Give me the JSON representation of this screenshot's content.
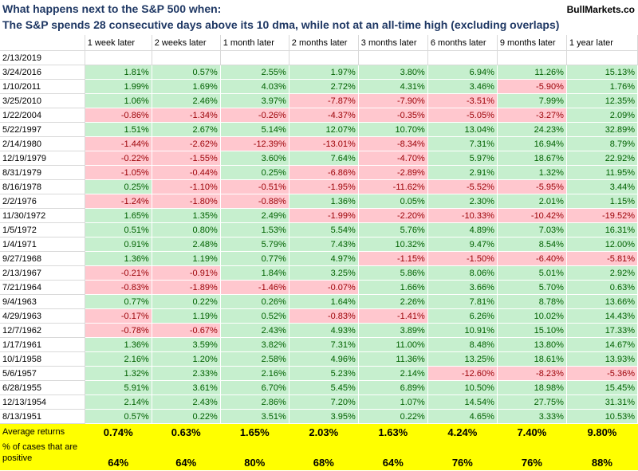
{
  "header": {
    "title_line1": "What happens next to the S&P 500 when:",
    "title_line2": "The S&P spends 28 consecutive days above its 10 dma, while not at an all-time high (excluding overlaps)",
    "brand": "BullMarkets.co"
  },
  "table": {
    "columns": [
      "",
      "1 week later",
      "2 weeks later",
      "1 month later",
      "2 months later",
      "3 months later",
      "6 months later",
      "9 months later",
      "1 year later"
    ],
    "rows": [
      {
        "date": "2/13/2019",
        "values": [
          "",
          "",
          "",
          "",
          "",
          "",
          "",
          ""
        ]
      },
      {
        "date": "3/24/2016",
        "values": [
          "1.81%",
          "0.57%",
          "2.55%",
          "1.97%",
          "3.80%",
          "6.94%",
          "11.26%",
          "15.13%"
        ]
      },
      {
        "date": "1/10/2011",
        "values": [
          "1.99%",
          "1.69%",
          "4.03%",
          "2.72%",
          "4.31%",
          "3.46%",
          "-5.90%",
          "1.76%"
        ]
      },
      {
        "date": "3/25/2010",
        "values": [
          "1.06%",
          "2.46%",
          "3.97%",
          "-7.87%",
          "-7.90%",
          "-3.51%",
          "7.99%",
          "12.35%"
        ]
      },
      {
        "date": "1/22/2004",
        "values": [
          "-0.86%",
          "-1.34%",
          "-0.26%",
          "-4.37%",
          "-0.35%",
          "-5.05%",
          "-3.27%",
          "2.09%"
        ]
      },
      {
        "date": "5/22/1997",
        "values": [
          "1.51%",
          "2.67%",
          "5.14%",
          "12.07%",
          "10.70%",
          "13.04%",
          "24.23%",
          "32.89%"
        ]
      },
      {
        "date": "2/14/1980",
        "values": [
          "-1.44%",
          "-2.62%",
          "-12.39%",
          "-13.01%",
          "-8.34%",
          "7.31%",
          "16.94%",
          "8.79%"
        ]
      },
      {
        "date": "12/19/1979",
        "values": [
          "-0.22%",
          "-1.55%",
          "3.60%",
          "7.64%",
          "-4.70%",
          "5.97%",
          "18.67%",
          "22.92%"
        ]
      },
      {
        "date": "8/31/1979",
        "values": [
          "-1.05%",
          "-0.44%",
          "0.25%",
          "-6.86%",
          "-2.89%",
          "2.91%",
          "1.32%",
          "11.95%"
        ]
      },
      {
        "date": "8/16/1978",
        "values": [
          "0.25%",
          "-1.10%",
          "-0.51%",
          "-1.95%",
          "-11.62%",
          "-5.52%",
          "-5.95%",
          "3.44%"
        ]
      },
      {
        "date": "2/2/1976",
        "values": [
          "-1.24%",
          "-1.80%",
          "-0.88%",
          "1.36%",
          "0.05%",
          "2.30%",
          "2.01%",
          "1.15%"
        ]
      },
      {
        "date": "11/30/1972",
        "values": [
          "1.65%",
          "1.35%",
          "2.49%",
          "-1.99%",
          "-2.20%",
          "-10.33%",
          "-10.42%",
          "-19.52%"
        ]
      },
      {
        "date": "1/5/1972",
        "values": [
          "0.51%",
          "0.80%",
          "1.53%",
          "5.54%",
          "5.76%",
          "4.89%",
          "7.03%",
          "16.31%"
        ]
      },
      {
        "date": "1/4/1971",
        "values": [
          "0.91%",
          "2.48%",
          "5.79%",
          "7.43%",
          "10.32%",
          "9.47%",
          "8.54%",
          "12.00%"
        ]
      },
      {
        "date": "9/27/1968",
        "values": [
          "1.36%",
          "1.19%",
          "0.77%",
          "4.97%",
          "-1.15%",
          "-1.50%",
          "-6.40%",
          "-5.81%"
        ]
      },
      {
        "date": "2/13/1967",
        "values": [
          "-0.21%",
          "-0.91%",
          "1.84%",
          "3.25%",
          "5.86%",
          "8.06%",
          "5.01%",
          "2.92%"
        ]
      },
      {
        "date": "7/21/1964",
        "values": [
          "-0.83%",
          "-1.89%",
          "-1.46%",
          "-0.07%",
          "1.66%",
          "3.66%",
          "5.70%",
          "0.63%"
        ]
      },
      {
        "date": "9/4/1963",
        "values": [
          "0.77%",
          "0.22%",
          "0.26%",
          "1.64%",
          "2.26%",
          "7.81%",
          "8.78%",
          "13.66%"
        ]
      },
      {
        "date": "4/29/1963",
        "values": [
          "-0.17%",
          "1.19%",
          "0.52%",
          "-0.83%",
          "-1.41%",
          "6.26%",
          "10.02%",
          "14.43%"
        ]
      },
      {
        "date": "12/7/1962",
        "values": [
          "-0.78%",
          "-0.67%",
          "2.43%",
          "4.93%",
          "3.89%",
          "10.91%",
          "15.10%",
          "17.33%"
        ]
      },
      {
        "date": "1/17/1961",
        "values": [
          "1.36%",
          "3.59%",
          "3.82%",
          "7.31%",
          "11.00%",
          "8.48%",
          "13.80%",
          "14.67%"
        ]
      },
      {
        "date": "10/1/1958",
        "values": [
          "2.16%",
          "1.20%",
          "2.58%",
          "4.96%",
          "11.36%",
          "13.25%",
          "18.61%",
          "13.93%"
        ]
      },
      {
        "date": "5/6/1957",
        "values": [
          "1.32%",
          "2.33%",
          "2.16%",
          "5.23%",
          "2.14%",
          "-12.60%",
          "-8.23%",
          "-5.36%"
        ]
      },
      {
        "date": "6/28/1955",
        "values": [
          "5.91%",
          "3.61%",
          "6.70%",
          "5.45%",
          "6.89%",
          "10.50%",
          "18.98%",
          "15.45%"
        ]
      },
      {
        "date": "12/13/1954",
        "values": [
          "2.14%",
          "2.43%",
          "2.86%",
          "7.20%",
          "1.07%",
          "14.54%",
          "27.75%",
          "31.31%"
        ]
      },
      {
        "date": "8/13/1951",
        "values": [
          "0.57%",
          "0.22%",
          "3.51%",
          "3.95%",
          "0.22%",
          "4.65%",
          "3.33%",
          "10.53%"
        ]
      }
    ],
    "average": {
      "label": "Average returns",
      "values": [
        "0.74%",
        "0.63%",
        "1.65%",
        "2.03%",
        "1.63%",
        "4.24%",
        "7.40%",
        "9.80%"
      ]
    },
    "positive": {
      "label": "% of cases that are positive",
      "values": [
        "64%",
        "64%",
        "80%",
        "68%",
        "64%",
        "76%",
        "76%",
        "88%"
      ]
    }
  },
  "colors": {
    "positive_fill": "#c6efce",
    "positive_text": "#006100",
    "negative_fill": "#ffc7ce",
    "negative_text": "#9c0006",
    "summary_fill": "#ffff00",
    "title_color": "#1f3864"
  }
}
